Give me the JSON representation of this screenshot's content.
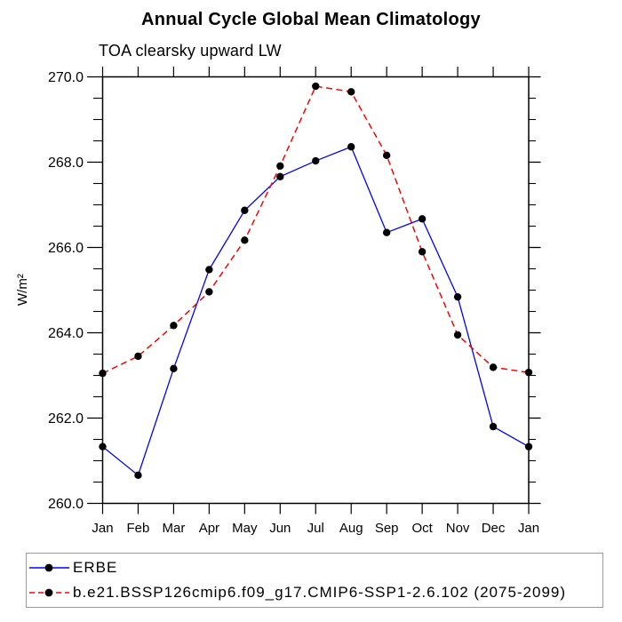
{
  "header": {
    "title": "Annual Cycle Global Mean Climatology",
    "subtitle": "TOA clearsky upward LW"
  },
  "chart_data": {
    "type": "line",
    "title": "Annual Cycle Global Mean Climatology",
    "subtitle": "TOA clearsky upward LW",
    "ylabel": "W/m²",
    "xlabel": "",
    "categories": [
      "Jan",
      "Feb",
      "Mar",
      "Apr",
      "May",
      "Jun",
      "Jul",
      "Aug",
      "Sep",
      "Oct",
      "Nov",
      "Dec",
      "Jan"
    ],
    "ylim": [
      260.0,
      270.0
    ],
    "ytick_major_interval": 2.0,
    "ytick_minor_interval": 0.5,
    "ytick_labels": [
      "260.0",
      "262.0",
      "264.0",
      "266.0",
      "268.0",
      "270.0"
    ],
    "grid": false,
    "legend_position": "bottom-left-box",
    "series": [
      {
        "name": "ERBE",
        "color": "#0000ff",
        "line_style": "solid",
        "marker": "filled-circle",
        "marker_color": "#000000",
        "values": [
          261.33,
          260.66,
          263.16,
          265.48,
          266.87,
          267.66,
          268.03,
          268.36,
          266.35,
          266.67,
          264.84,
          261.8,
          261.33
        ]
      },
      {
        "name": "b.e21.BSSP126cmip6.f09_g17.CMIP6-SSP1-2.6.102 (2075-2099)",
        "color": "#ff0000",
        "line_style": "dashed",
        "marker": "filled-circle",
        "marker_color": "#000000",
        "values": [
          263.05,
          263.45,
          264.17,
          264.96,
          266.17,
          267.91,
          269.78,
          269.65,
          268.16,
          265.9,
          263.95,
          263.19,
          263.07
        ]
      }
    ]
  },
  "legend": {
    "entries": [
      {
        "label": "ERBE",
        "line_color": "#0000ff",
        "line_style": "solid",
        "marker_color": "#000000"
      },
      {
        "label": "b.e21.BSSP126cmip6.f09_g17.CMIP6-SSP1-2.6.102 (2075-2099)",
        "line_color": "#ff0000",
        "line_style": "dashed",
        "marker_color": "#000000"
      }
    ]
  },
  "colors": {
    "axis": "#000000",
    "text": "#000000",
    "legend_border": "#9a9a9a",
    "background": "#ffffff"
  }
}
